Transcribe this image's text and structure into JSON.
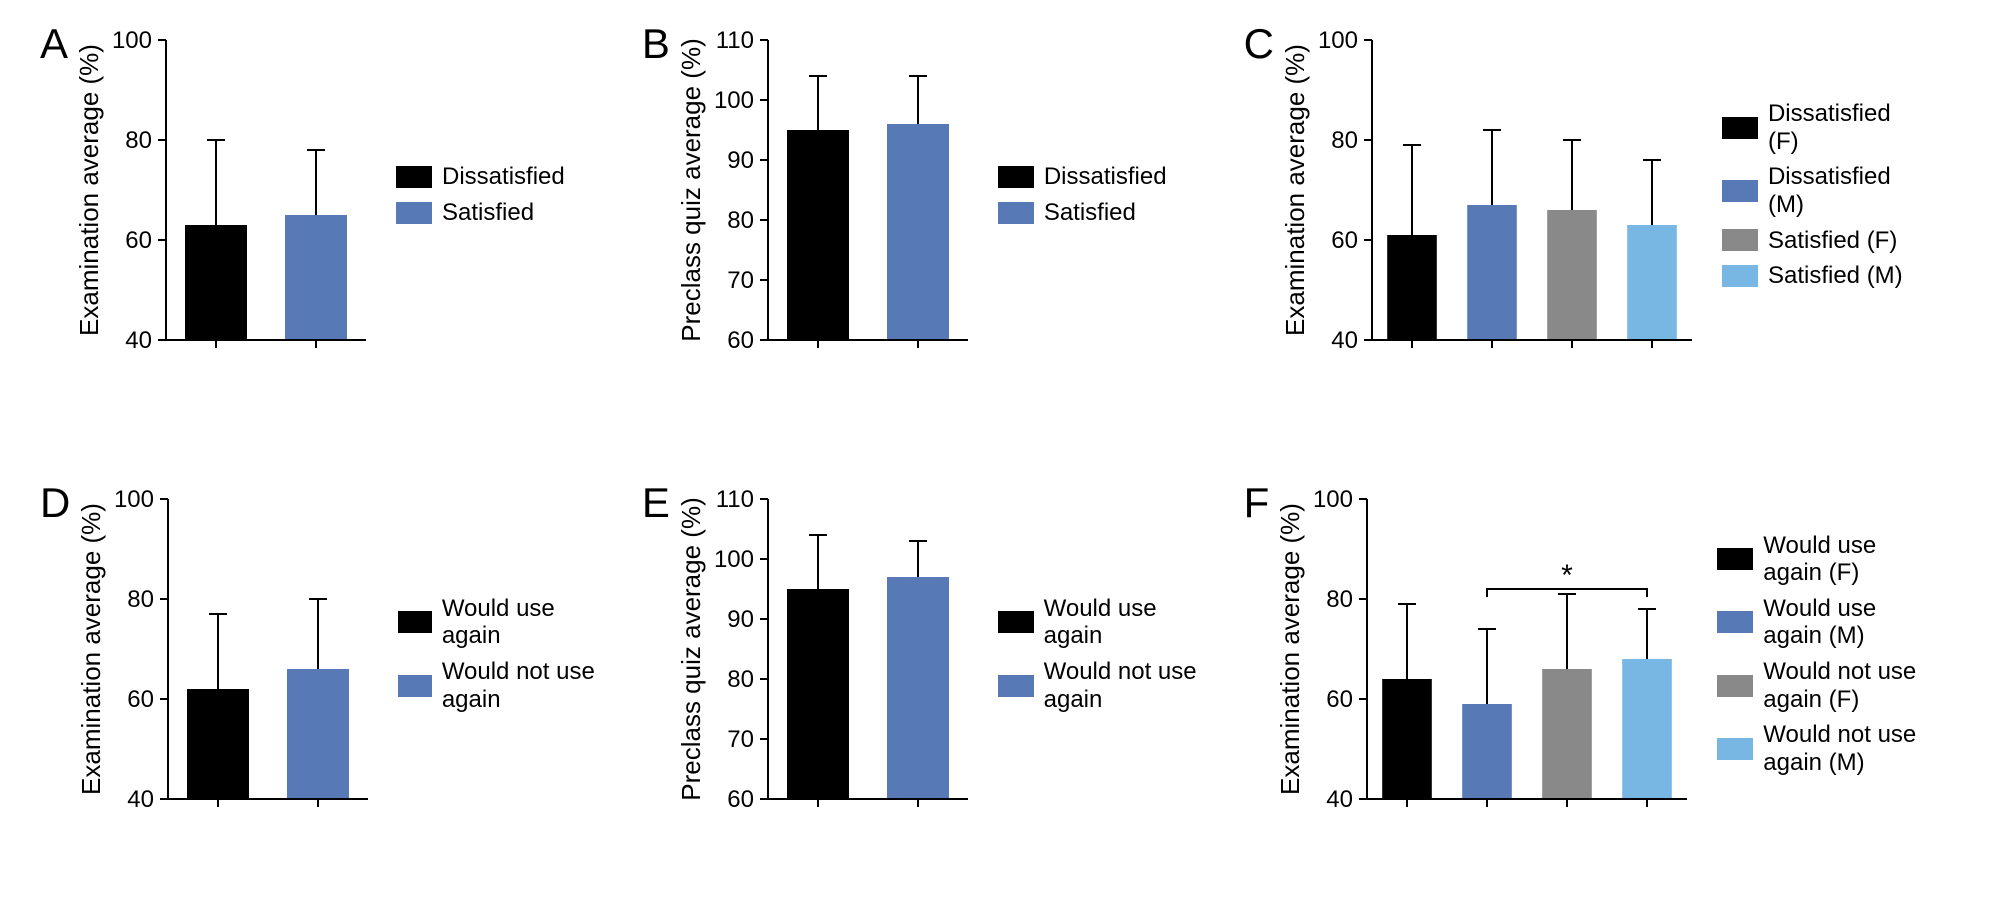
{
  "global": {
    "axis_color": "#000000",
    "tick_color": "#000000",
    "text_color": "#000000",
    "background": "#ffffff",
    "label_fontsize": 26,
    "tick_fontsize": 24,
    "panel_label_fontsize": 42,
    "axis_linewidth": 2,
    "error_linewidth": 2,
    "error_cap_width": 18
  },
  "colors": {
    "black": "#000000",
    "blue_dark": "#5779b5",
    "gray": "#898989",
    "blue_light": "#78b7e4"
  },
  "panels": {
    "A": {
      "label": "A",
      "type": "bar",
      "ylabel": "Examination average (%)",
      "ylim": [
        40,
        100
      ],
      "ytick_step": 20,
      "yticks": [
        40,
        60,
        80,
        100
      ],
      "bars": [
        {
          "name": "Dissatisfied",
          "value": 63,
          "error": 17,
          "color": "#000000"
        },
        {
          "name": "Satisfied",
          "value": 65,
          "error": 13,
          "color": "#5779b5"
        }
      ],
      "legend": [
        {
          "label": "Dissatisfied",
          "color": "#000000"
        },
        {
          "label": "Satisfied",
          "color": "#5779b5"
        }
      ]
    },
    "B": {
      "label": "B",
      "type": "bar",
      "ylabel": "Preclass quiz average (%)",
      "ylim": [
        60,
        110
      ],
      "ytick_step": 10,
      "yticks": [
        60,
        70,
        80,
        90,
        100,
        110
      ],
      "bars": [
        {
          "name": "Dissatisfied",
          "value": 95,
          "error": 9,
          "color": "#000000"
        },
        {
          "name": "Satisfied",
          "value": 96,
          "error": 8,
          "color": "#5779b5"
        }
      ],
      "legend": [
        {
          "label": "Dissatisfied",
          "color": "#000000"
        },
        {
          "label": "Satisfied",
          "color": "#5779b5"
        }
      ]
    },
    "C": {
      "label": "C",
      "type": "bar",
      "ylabel": "Examination average (%)",
      "ylim": [
        40,
        100
      ],
      "ytick_step": 20,
      "yticks": [
        40,
        60,
        80,
        100
      ],
      "bars": [
        {
          "name": "Dissatisfied (F)",
          "value": 61,
          "error": 18,
          "color": "#000000"
        },
        {
          "name": "Dissatisfied (M)",
          "value": 67,
          "error": 15,
          "color": "#5779b5"
        },
        {
          "name": "Satisfied (F)",
          "value": 66,
          "error": 14,
          "color": "#898989"
        },
        {
          "name": "Satisfied (M)",
          "value": 63,
          "error": 13,
          "color": "#78b7e4"
        }
      ],
      "legend": [
        {
          "label": "Dissatisfied (F)",
          "color": "#000000"
        },
        {
          "label": "Dissatisfied (M)",
          "color": "#5779b5"
        },
        {
          "label": "Satisfied (F)",
          "color": "#898989"
        },
        {
          "label": "Satisfied (M)",
          "color": "#78b7e4"
        }
      ]
    },
    "D": {
      "label": "D",
      "type": "bar",
      "ylabel": "Examination average (%)",
      "ylim": [
        40,
        100
      ],
      "ytick_step": 20,
      "yticks": [
        40,
        60,
        80,
        100
      ],
      "bars": [
        {
          "name": "Would use again",
          "value": 62,
          "error": 15,
          "color": "#000000"
        },
        {
          "name": "Would not use again",
          "value": 66,
          "error": 14,
          "color": "#5779b5"
        }
      ],
      "legend": [
        {
          "label": "Would use again",
          "color": "#000000"
        },
        {
          "label": "Would not use again",
          "color": "#5779b5"
        }
      ]
    },
    "E": {
      "label": "E",
      "type": "bar",
      "ylabel": "Preclass quiz average (%)",
      "ylim": [
        60,
        110
      ],
      "ytick_step": 10,
      "yticks": [
        60,
        70,
        80,
        90,
        100,
        110
      ],
      "bars": [
        {
          "name": "Would use again",
          "value": 95,
          "error": 9,
          "color": "#000000"
        },
        {
          "name": "Would not use again",
          "value": 97,
          "error": 6,
          "color": "#5779b5"
        }
      ],
      "legend": [
        {
          "label": "Would use again",
          "color": "#000000"
        },
        {
          "label": "Would not use again",
          "color": "#5779b5"
        }
      ]
    },
    "F": {
      "label": "F",
      "type": "bar",
      "ylabel": "Examination average (%)",
      "ylim": [
        40,
        100
      ],
      "ytick_step": 20,
      "yticks": [
        40,
        60,
        80,
        100
      ],
      "bars": [
        {
          "name": "Would use again (F)",
          "value": 64,
          "error": 15,
          "color": "#000000"
        },
        {
          "name": "Would use again (M)",
          "value": 59,
          "error": 15,
          "color": "#5779b5"
        },
        {
          "name": "Would not use again (F)",
          "value": 66,
          "error": 15,
          "color": "#898989"
        },
        {
          "name": "Would not use again (M)",
          "value": 68,
          "error": 10,
          "color": "#78b7e4"
        }
      ],
      "significance": {
        "from_bar": 1,
        "to_bar": 3,
        "symbol": "*",
        "y_position": 82
      },
      "legend": [
        {
          "label": "Would use again (F)",
          "color": "#000000"
        },
        {
          "label": "Would use again (M)",
          "color": "#5779b5"
        },
        {
          "label": "Would not use again (F)",
          "color": "#898989"
        },
        {
          "label": "Would not use again (M)",
          "color": "#78b7e4"
        }
      ]
    }
  }
}
